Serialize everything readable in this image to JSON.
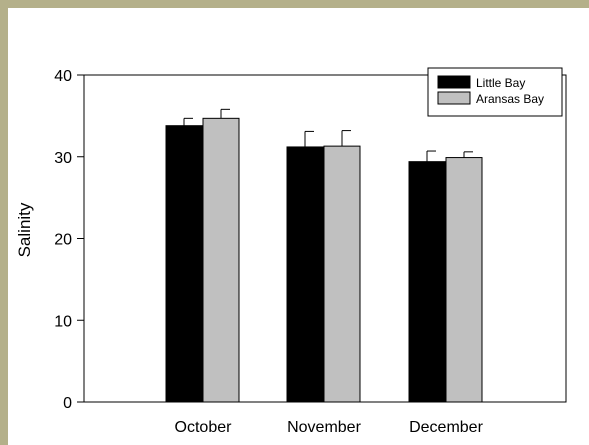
{
  "chart_data": {
    "type": "bar",
    "title": "",
    "xlabel": "",
    "ylabel": "Salinity",
    "ylim": [
      0,
      40
    ],
    "yticks": [
      0,
      10,
      20,
      30,
      40
    ],
    "categories": [
      "October",
      "November",
      "December"
    ],
    "grid": false,
    "legend_position": "top-right",
    "series": [
      {
        "name": "Little Bay",
        "color": "#000000",
        "values": [
          33.8,
          31.2,
          29.4
        ],
        "errors": [
          0.9,
          1.9,
          1.3
        ]
      },
      {
        "name": "Aransas Bay",
        "color": "#c0c0c0",
        "values": [
          34.7,
          31.3,
          29.9
        ],
        "errors": [
          1.1,
          1.9,
          0.7
        ]
      }
    ]
  }
}
